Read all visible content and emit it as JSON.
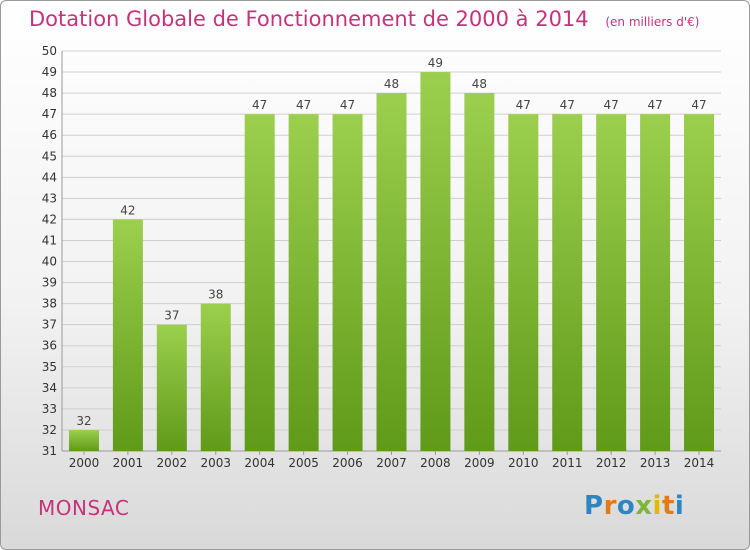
{
  "title": "Dotation Globale de Fonctionnement de 2000 à 2014",
  "unit_note": "(en milliers d'€)",
  "commune": "MONSAC",
  "brand": "Proxiti",
  "colors": {
    "bar_top": "#9ccf4e",
    "bar_bottom": "#5f9a18",
    "title": "#c8327a",
    "grid": "#cfcfcf"
  },
  "chart_data": {
    "type": "bar",
    "title": "Dotation Globale de Fonctionnement de 2000 à 2014",
    "xlabel": "",
    "ylabel": "",
    "categories": [
      "2000",
      "2001",
      "2002",
      "2003",
      "2004",
      "2005",
      "2006",
      "2007",
      "2008",
      "2009",
      "2010",
      "2011",
      "2012",
      "2013",
      "2014"
    ],
    "values": [
      32,
      42,
      37,
      38,
      47,
      47,
      47,
      48,
      49,
      48,
      47,
      47,
      47,
      47,
      47
    ],
    "ylim": [
      31,
      50
    ],
    "yticks": [
      31,
      32,
      33,
      34,
      35,
      36,
      37,
      38,
      39,
      40,
      41,
      42,
      43,
      44,
      45,
      46,
      47,
      48,
      49,
      50
    ],
    "grid": true,
    "data_labels": true
  }
}
